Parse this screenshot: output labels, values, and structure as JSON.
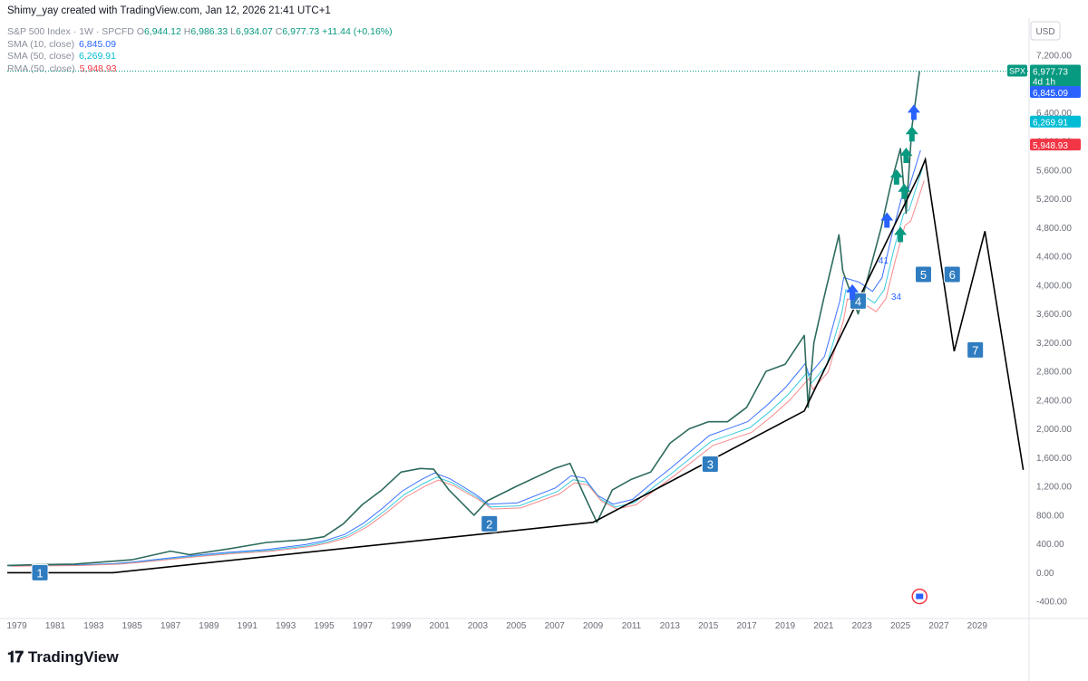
{
  "header": {
    "author_line": "Shimy_yay created with TradingView.com, Jan 12, 2026 21:41 UTC+1"
  },
  "legend": {
    "symbol": "S&P 500 Index · 1W · SPCFD",
    "ohlc": {
      "o_label": "O",
      "o": "6,944.12",
      "h_label": "H",
      "h": "6,986.33",
      "l_label": "L",
      "l": "6,934.07",
      "c_label": "C",
      "c": "6,977.73",
      "change": "+11.44 (+0.16%)"
    },
    "indicators": [
      {
        "label": "SMA (10, close)",
        "value": "6,845.09",
        "color": "#2962ff"
      },
      {
        "label": "SMA (50, close)",
        "value": "6,269.91",
        "color": "#00bcd4"
      },
      {
        "label": "RMA (50, close)",
        "value": "5,948.93",
        "color": "#f23645"
      }
    ]
  },
  "price_axis": {
    "currency": "USD",
    "ticks": [
      "7,200.00",
      "6,800.00",
      "6,400.00",
      "6,000.00",
      "5,600.00",
      "5,200.00",
      "4,800.00",
      "4,400.00",
      "4,000.00",
      "3,600.00",
      "3,200.00",
      "2,800.00",
      "2,400.00",
      "2,000.00",
      "1,600.00",
      "1,200.00",
      "800.00",
      "400.00",
      "0.00",
      "-400.00"
    ],
    "labels": [
      {
        "text": "SPX",
        "color": "#089981"
      },
      {
        "text": "6,977.73",
        "color": "#089981"
      },
      {
        "text": "4d 1h",
        "color": "#089981"
      },
      {
        "text": "6,845.09",
        "color": "#2962ff"
      },
      {
        "text": "6,269.91",
        "color": "#00bcd4"
      },
      {
        "text": "5,948.93",
        "color": "#f23645"
      }
    ]
  },
  "time_axis": {
    "ticks": [
      "1979",
      "1981",
      "1983",
      "1985",
      "1987",
      "1989",
      "1991",
      "1993",
      "1995",
      "1997",
      "1999",
      "2001",
      "2003",
      "2005",
      "2007",
      "2009",
      "2011",
      "2013",
      "2015",
      "2017",
      "2019",
      "2021",
      "2023",
      "2025",
      "2027",
      "2029"
    ]
  },
  "footer": {
    "brand": "TradingView"
  },
  "chart_data": {
    "type": "line",
    "title": "S&P 500 Index · 1W · SPCFD",
    "ylim": [
      -600,
      7400
    ],
    "xlim": [
      1978.5,
      2031.7
    ],
    "price_series": {
      "name": "S&P 500 Index",
      "x": [
        1978.5,
        1980,
        1982,
        1984,
        1985,
        1987,
        1988,
        1990,
        1992,
        1994,
        1995,
        1996,
        1997,
        1998,
        1999,
        2000,
        2000.7,
        2001.5,
        2002.8,
        2003.5,
        2005,
        2007,
        2007.8,
        2008.5,
        2009.2,
        2010,
        2011,
        2012,
        2013,
        2014,
        2015,
        2016,
        2017,
        2018,
        2019,
        2020,
        2020.2,
        2020.5,
        2021,
        2021.8,
        2022,
        2022.8,
        2023.5,
        2024,
        2024.5,
        2025,
        2025.3,
        2025.6,
        2026
      ],
      "y": [
        100,
        110,
        120,
        160,
        180,
        300,
        250,
        330,
        420,
        460,
        500,
        680,
        950,
        1150,
        1400,
        1450,
        1440,
        1150,
        800,
        1000,
        1200,
        1450,
        1520,
        1100,
        700,
        1150,
        1300,
        1400,
        1800,
        2000,
        2100,
        2100,
        2300,
        2800,
        2900,
        3300,
        2300,
        3200,
        3800,
        4700,
        4200,
        3600,
        4300,
        4800,
        5400,
        5900,
        5000,
        6200,
        6977.73
      ]
    },
    "moving_averages": [
      {
        "name": "SMA (10, close)",
        "last": 6845.09,
        "color": "#2962ff"
      },
      {
        "name": "SMA (50, close)",
        "last": 6269.91,
        "color": "#00bcd4"
      },
      {
        "name": "RMA (50, close)",
        "last": 5948.93,
        "color": "#f23645"
      }
    ],
    "wave_path": {
      "x": [
        1978.5,
        1984,
        2009,
        2020,
        2026,
        2026.3,
        2027.8,
        2029.4,
        2031.4
      ],
      "y": [
        0,
        0,
        700,
        2250,
        5550,
        5750,
        3080,
        4750,
        1430
      ]
    },
    "wave_labels": [
      {
        "text": "1",
        "x": 1980.2,
        "y": 0
      },
      {
        "text": "2",
        "x": 2003.6,
        "y": 680
      },
      {
        "text": "3",
        "x": 2015.1,
        "y": 1510
      },
      {
        "text": "4",
        "x": 2022.8,
        "y": 3780
      },
      {
        "text": "5",
        "x": 2026.2,
        "y": 4150
      },
      {
        "text": "6",
        "x": 2027.7,
        "y": 4150
      },
      {
        "text": "7",
        "x": 2028.9,
        "y": 3100
      }
    ],
    "signal_labels": [
      "41",
      "34"
    ],
    "last_price": 6977.73
  }
}
